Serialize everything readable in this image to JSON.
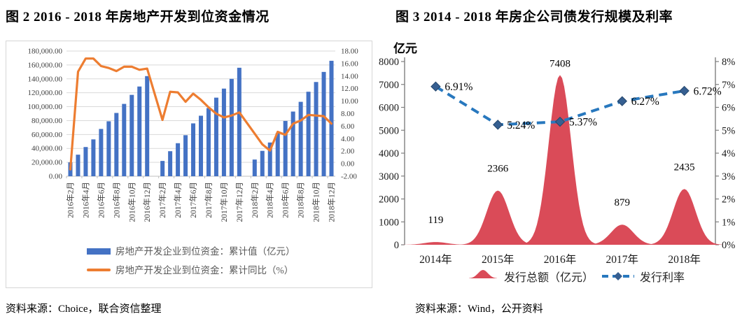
{
  "figure2": {
    "title": "图 2   2016 - 2018 年房地产开发到位资金情况",
    "source": "资料来源：Choice，联合资信整理"
  },
  "figure3": {
    "title": "图 3   2014 - 2018 年房企公司债发行规模及利率",
    "source": "资料来源：Wind，公开资料"
  },
  "chart_data": [
    {
      "type": "bar",
      "subtype": "bar-line-combo",
      "title": "2016-2018 年房地产开发到位资金情况",
      "categories": [
        "2016年2月",
        "2016年3月",
        "2016年4月",
        "2016年5月",
        "2016年6月",
        "2016年7月",
        "2016年8月",
        "2016年9月",
        "2016年10月",
        "2016年11月",
        "2016年12月",
        "2017年1月",
        "2017年2月",
        "2017年3月",
        "2017年4月",
        "2017年5月",
        "2017年6月",
        "2017年7月",
        "2017年8月",
        "2017年9月",
        "2017年10月",
        "2017年11月",
        "2017年12月",
        "2018年1月",
        "2018年2月",
        "2018年3月",
        "2018年4月",
        "2018年5月",
        "2018年6月",
        "2018年7月",
        "2018年8月",
        "2018年9月",
        "2018年10月",
        "2018年11月",
        "2018年12月"
      ],
      "x_label_every": 2,
      "series": [
        {
          "name": "房地产开发企业到位资金：累计值（亿元）",
          "chart_type": "bar",
          "axis": "left",
          "color": "#4472C4",
          "values": [
            20000,
            31000,
            42000,
            53000,
            68000,
            79000,
            91000,
            104000,
            117000,
            129000,
            144000,
            null,
            22000,
            36000,
            47500,
            59000,
            76000,
            87000,
            98000,
            113000,
            126000,
            140000,
            156000,
            null,
            24000,
            36500,
            48500,
            62000,
            79500,
            93000,
            107000,
            121500,
            135500,
            150000,
            166000
          ]
        },
        {
          "name": "房地产开发企业到位资金：累计同比（%）",
          "chart_type": "line",
          "axis": "right",
          "color": "#ED7D31",
          "values": [
            -0.9,
            14.7,
            16.8,
            16.8,
            15.6,
            15.3,
            14.8,
            15.5,
            15.5,
            15.0,
            15.2,
            null,
            7.0,
            11.5,
            11.4,
            9.9,
            11.2,
            10.2,
            9.0,
            8.0,
            7.4,
            7.7,
            8.2,
            null,
            4.8,
            3.1,
            2.1,
            5.1,
            4.6,
            6.4,
            6.9,
            7.8,
            7.7,
            7.6,
            6.4
          ]
        }
      ],
      "left_axis": {
        "min": 0,
        "max": 180000,
        "step": 20000,
        "ticks": [
          "180,000.00",
          "160,000.00",
          "140,000.00",
          "120,000.00",
          "100,000.00",
          "80,000.00",
          "60,000.00",
          "40,000.00",
          "20,000.00",
          "0.00"
        ]
      },
      "right_axis": {
        "min": -2,
        "max": 18,
        "step": 2,
        "ticks": [
          "18.00",
          "16.00",
          "14.00",
          "12.00",
          "10.00",
          "8.00",
          "6.00",
          "4.00",
          "2.00",
          "0.00",
          "-2.00"
        ]
      },
      "grid": true,
      "legend_position": "bottom",
      "colors": {
        "grid": "#d9d9d9",
        "axis": "#bfbfbf",
        "tick_text": "#404040",
        "legend_text": "#595959"
      }
    },
    {
      "type": "area",
      "subtype": "peak-area-line-combo",
      "title": "2014-2018 年房企公司债发行规模及利率",
      "unit_label": "亿元",
      "categories": [
        "2014年",
        "2015年",
        "2016年",
        "2017年",
        "2018年"
      ],
      "series": [
        {
          "name": "发行总额（亿元）",
          "chart_type": "peak-area",
          "axis": "left",
          "color": "#DA4B58",
          "values": [
            119,
            2366,
            7408,
            879,
            2435
          ],
          "data_labels": [
            "119",
            "2366",
            "7408",
            "879",
            "2435"
          ]
        },
        {
          "name": "发行利率",
          "chart_type": "dashed-line",
          "axis": "right",
          "color": "#2878BE",
          "marker_color": "#365F91",
          "values": [
            6.91,
            5.24,
            5.37,
            6.27,
            6.72
          ],
          "data_labels": [
            "6.91%",
            "5.24%",
            "5.37%",
            "6.27%",
            "6.72%"
          ]
        }
      ],
      "left_axis": {
        "min": 0,
        "max": 8000,
        "step": 1000,
        "ticks": [
          "8000",
          "7000",
          "6000",
          "5000",
          "4000",
          "3000",
          "2000",
          "1000",
          "0"
        ]
      },
      "right_axis": {
        "min": 0,
        "max": 8,
        "step": 1,
        "ticks": [
          "8%",
          "7%",
          "6%",
          "5%",
          "4%",
          "3%",
          "2%",
          "1%",
          "0%"
        ]
      },
      "grid": false,
      "legend_position": "bottom",
      "colors": {
        "axis": "#7f7f7f",
        "tick_text": "#1a1a1a",
        "label_text": "#000000",
        "legend_text": "#262626"
      }
    }
  ]
}
